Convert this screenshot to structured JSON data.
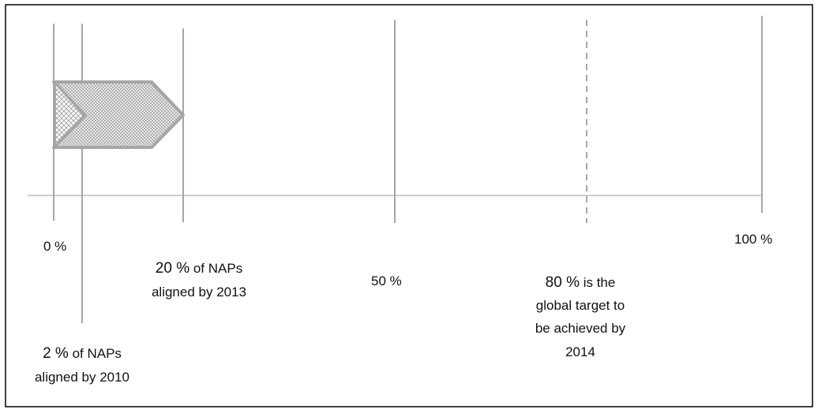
{
  "axis_labels": [
    "0 %",
    "50 %",
    "100 %"
  ],
  "milestones": [
    {
      "figure": "2 %",
      "text": [
        "of NAPs",
        "aligned by 2010"
      ]
    },
    {
      "figure": "20 %",
      "text": [
        "of NAPs",
        "aligned by 2013"
      ]
    },
    {
      "figure": "80 %",
      "text": [
        "is the",
        "global target to",
        "be achieved by",
        "2014"
      ]
    }
  ]
}
